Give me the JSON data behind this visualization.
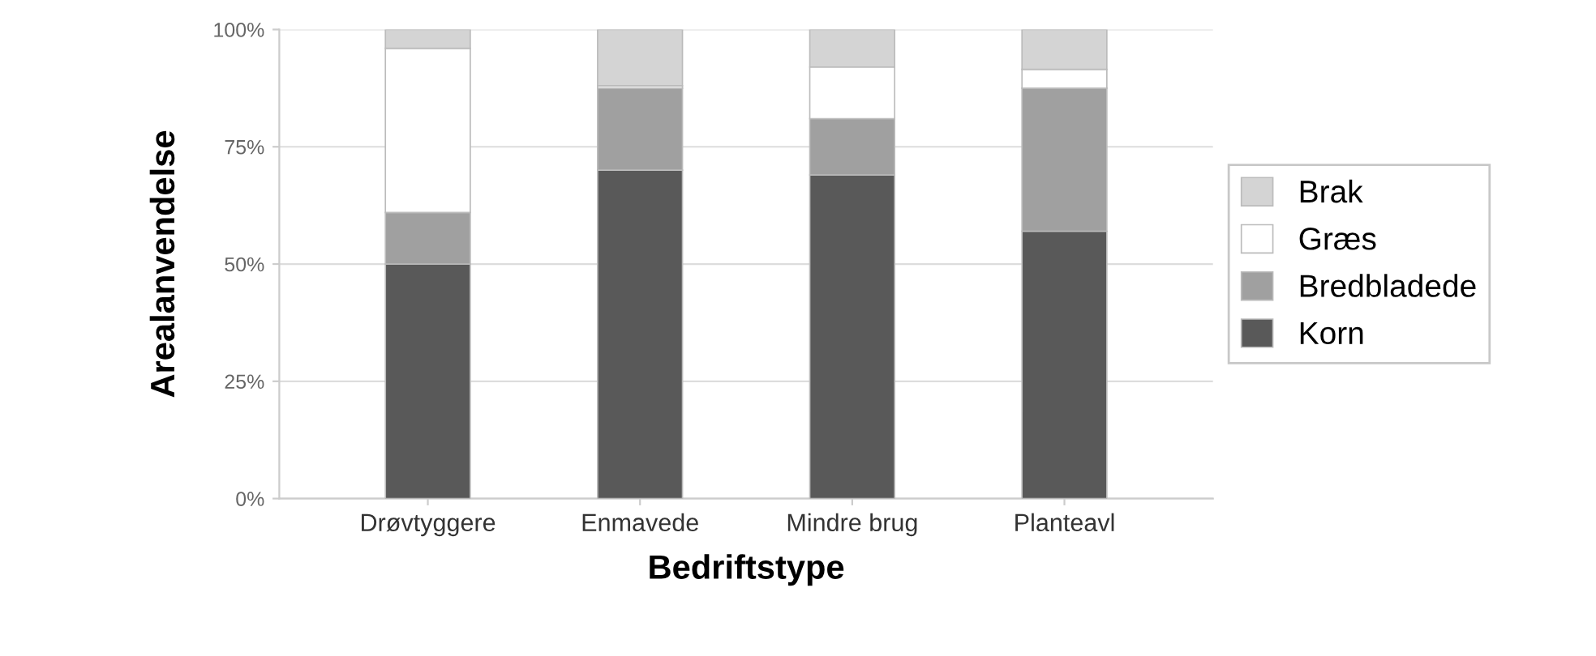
{
  "chart_data": {
    "type": "bar",
    "stacked": true,
    "xlabel": "Bedriftstype",
    "ylabel": "Arealanvendelse",
    "categories": [
      "Drøvtyggere",
      "Enmavede",
      "Mindre brug",
      "Planteavl"
    ],
    "series": [
      {
        "name": "Korn",
        "color": "#595959",
        "values": [
          50,
          70,
          69,
          57
        ]
      },
      {
        "name": "Bredbladede",
        "color": "#a0a0a0",
        "values": [
          11,
          17.5,
          12,
          30.5
        ]
      },
      {
        "name": "Græs",
        "color": "#ffffff",
        "values": [
          35,
          0.5,
          11,
          4
        ]
      },
      {
        "name": "Brak",
        "color": "#d4d4d4",
        "values": [
          4,
          12,
          8,
          8.5
        ]
      }
    ],
    "ylim": [
      0,
      100
    ],
    "yticks": [
      {
        "value": 0,
        "label": "0%"
      },
      {
        "value": 25,
        "label": "25%"
      },
      {
        "value": 50,
        "label": "50%"
      },
      {
        "value": 75,
        "label": "75%"
      },
      {
        "value": 100,
        "label": "100%"
      }
    ],
    "grid": "y",
    "legend": "right"
  }
}
